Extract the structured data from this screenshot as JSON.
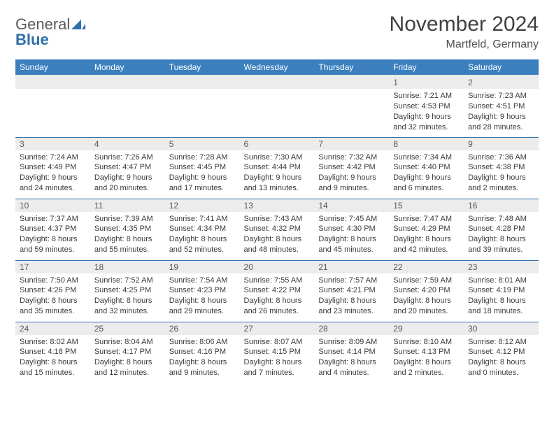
{
  "logo": {
    "word1": "General",
    "word2": "Blue"
  },
  "header": {
    "title": "November 2024",
    "location": "Martfeld, Germany"
  },
  "colors": {
    "header_bg": "#3b7fbf",
    "header_text": "#ffffff",
    "row_divider": "#2f6fab",
    "daynum_bg": "#ececec",
    "text": "#3a3a3a"
  },
  "calendar": {
    "day_headers": [
      "Sunday",
      "Monday",
      "Tuesday",
      "Wednesday",
      "Thursday",
      "Friday",
      "Saturday"
    ],
    "weeks": [
      [
        null,
        null,
        null,
        null,
        null,
        {
          "num": "1",
          "sunrise": "Sunrise: 7:21 AM",
          "sunset": "Sunset: 4:53 PM",
          "daylight": "Daylight: 9 hours and 32 minutes."
        },
        {
          "num": "2",
          "sunrise": "Sunrise: 7:23 AM",
          "sunset": "Sunset: 4:51 PM",
          "daylight": "Daylight: 9 hours and 28 minutes."
        }
      ],
      [
        {
          "num": "3",
          "sunrise": "Sunrise: 7:24 AM",
          "sunset": "Sunset: 4:49 PM",
          "daylight": "Daylight: 9 hours and 24 minutes."
        },
        {
          "num": "4",
          "sunrise": "Sunrise: 7:26 AM",
          "sunset": "Sunset: 4:47 PM",
          "daylight": "Daylight: 9 hours and 20 minutes."
        },
        {
          "num": "5",
          "sunrise": "Sunrise: 7:28 AM",
          "sunset": "Sunset: 4:45 PM",
          "daylight": "Daylight: 9 hours and 17 minutes."
        },
        {
          "num": "6",
          "sunrise": "Sunrise: 7:30 AM",
          "sunset": "Sunset: 4:44 PM",
          "daylight": "Daylight: 9 hours and 13 minutes."
        },
        {
          "num": "7",
          "sunrise": "Sunrise: 7:32 AM",
          "sunset": "Sunset: 4:42 PM",
          "daylight": "Daylight: 9 hours and 9 minutes."
        },
        {
          "num": "8",
          "sunrise": "Sunrise: 7:34 AM",
          "sunset": "Sunset: 4:40 PM",
          "daylight": "Daylight: 9 hours and 6 minutes."
        },
        {
          "num": "9",
          "sunrise": "Sunrise: 7:36 AM",
          "sunset": "Sunset: 4:38 PM",
          "daylight": "Daylight: 9 hours and 2 minutes."
        }
      ],
      [
        {
          "num": "10",
          "sunrise": "Sunrise: 7:37 AM",
          "sunset": "Sunset: 4:37 PM",
          "daylight": "Daylight: 8 hours and 59 minutes."
        },
        {
          "num": "11",
          "sunrise": "Sunrise: 7:39 AM",
          "sunset": "Sunset: 4:35 PM",
          "daylight": "Daylight: 8 hours and 55 minutes."
        },
        {
          "num": "12",
          "sunrise": "Sunrise: 7:41 AM",
          "sunset": "Sunset: 4:34 PM",
          "daylight": "Daylight: 8 hours and 52 minutes."
        },
        {
          "num": "13",
          "sunrise": "Sunrise: 7:43 AM",
          "sunset": "Sunset: 4:32 PM",
          "daylight": "Daylight: 8 hours and 48 minutes."
        },
        {
          "num": "14",
          "sunrise": "Sunrise: 7:45 AM",
          "sunset": "Sunset: 4:30 PM",
          "daylight": "Daylight: 8 hours and 45 minutes."
        },
        {
          "num": "15",
          "sunrise": "Sunrise: 7:47 AM",
          "sunset": "Sunset: 4:29 PM",
          "daylight": "Daylight: 8 hours and 42 minutes."
        },
        {
          "num": "16",
          "sunrise": "Sunrise: 7:48 AM",
          "sunset": "Sunset: 4:28 PM",
          "daylight": "Daylight: 8 hours and 39 minutes."
        }
      ],
      [
        {
          "num": "17",
          "sunrise": "Sunrise: 7:50 AM",
          "sunset": "Sunset: 4:26 PM",
          "daylight": "Daylight: 8 hours and 35 minutes."
        },
        {
          "num": "18",
          "sunrise": "Sunrise: 7:52 AM",
          "sunset": "Sunset: 4:25 PM",
          "daylight": "Daylight: 8 hours and 32 minutes."
        },
        {
          "num": "19",
          "sunrise": "Sunrise: 7:54 AM",
          "sunset": "Sunset: 4:23 PM",
          "daylight": "Daylight: 8 hours and 29 minutes."
        },
        {
          "num": "20",
          "sunrise": "Sunrise: 7:55 AM",
          "sunset": "Sunset: 4:22 PM",
          "daylight": "Daylight: 8 hours and 26 minutes."
        },
        {
          "num": "21",
          "sunrise": "Sunrise: 7:57 AM",
          "sunset": "Sunset: 4:21 PM",
          "daylight": "Daylight: 8 hours and 23 minutes."
        },
        {
          "num": "22",
          "sunrise": "Sunrise: 7:59 AM",
          "sunset": "Sunset: 4:20 PM",
          "daylight": "Daylight: 8 hours and 20 minutes."
        },
        {
          "num": "23",
          "sunrise": "Sunrise: 8:01 AM",
          "sunset": "Sunset: 4:19 PM",
          "daylight": "Daylight: 8 hours and 18 minutes."
        }
      ],
      [
        {
          "num": "24",
          "sunrise": "Sunrise: 8:02 AM",
          "sunset": "Sunset: 4:18 PM",
          "daylight": "Daylight: 8 hours and 15 minutes."
        },
        {
          "num": "25",
          "sunrise": "Sunrise: 8:04 AM",
          "sunset": "Sunset: 4:17 PM",
          "daylight": "Daylight: 8 hours and 12 minutes."
        },
        {
          "num": "26",
          "sunrise": "Sunrise: 8:06 AM",
          "sunset": "Sunset: 4:16 PM",
          "daylight": "Daylight: 8 hours and 9 minutes."
        },
        {
          "num": "27",
          "sunrise": "Sunrise: 8:07 AM",
          "sunset": "Sunset: 4:15 PM",
          "daylight": "Daylight: 8 hours and 7 minutes."
        },
        {
          "num": "28",
          "sunrise": "Sunrise: 8:09 AM",
          "sunset": "Sunset: 4:14 PM",
          "daylight": "Daylight: 8 hours and 4 minutes."
        },
        {
          "num": "29",
          "sunrise": "Sunrise: 8:10 AM",
          "sunset": "Sunset: 4:13 PM",
          "daylight": "Daylight: 8 hours and 2 minutes."
        },
        {
          "num": "30",
          "sunrise": "Sunrise: 8:12 AM",
          "sunset": "Sunset: 4:12 PM",
          "daylight": "Daylight: 8 hours and 0 minutes."
        }
      ]
    ]
  }
}
